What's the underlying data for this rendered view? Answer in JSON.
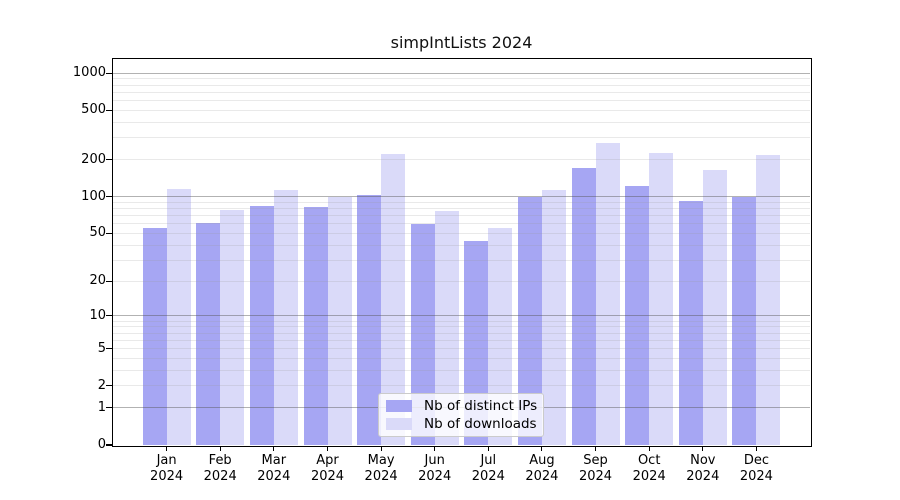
{
  "chart_data": {
    "type": "bar",
    "title": "simpIntLists 2024",
    "categories": [
      [
        "Jan",
        "2024"
      ],
      [
        "Feb",
        "2024"
      ],
      [
        "Mar",
        "2024"
      ],
      [
        "Apr",
        "2024"
      ],
      [
        "May",
        "2024"
      ],
      [
        "Jun",
        "2024"
      ],
      [
        "Jul",
        "2024"
      ],
      [
        "Aug",
        "2024"
      ],
      [
        "Sep",
        "2024"
      ],
      [
        "Oct",
        "2024"
      ],
      [
        "Nov",
        "2024"
      ],
      [
        "Dec",
        "2024"
      ]
    ],
    "series": [
      {
        "name": "Nb of distinct IPs",
        "color": "#a6a6f3",
        "values": [
          55,
          61,
          84,
          82,
          103,
          60,
          43,
          100,
          170,
          121,
          92,
          100
        ]
      },
      {
        "name": "Nb of downloads",
        "color": "#dadaf9",
        "values": [
          116,
          78,
          113,
          100,
          220,
          76,
          55,
          114,
          270,
          227,
          166,
          218
        ]
      }
    ],
    "yscale": "log1p",
    "ylim": [
      0,
      1300
    ],
    "yticks": [
      "0",
      "1",
      "2",
      "5",
      "10",
      "20",
      "50",
      "100",
      "200",
      "500",
      "1000"
    ],
    "grid": true,
    "legend_position": "lower center",
    "colors": {
      "distinct_ips": "#a6a6f3",
      "downloads": "#dadaf9",
      "major_grid": "#9b9b9b",
      "minor_grid": "#e8e8e8"
    }
  }
}
